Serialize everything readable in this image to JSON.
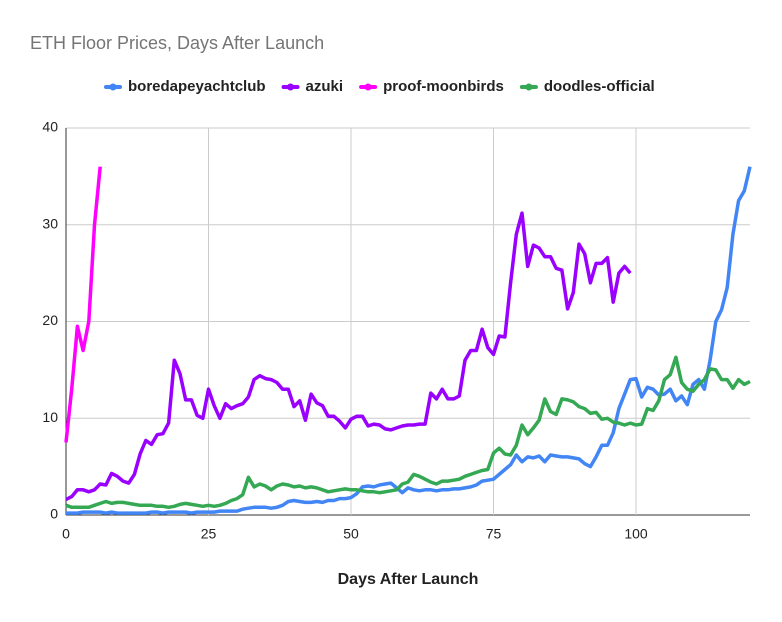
{
  "chart_data": {
    "type": "line",
    "title": "ETH Floor Prices, Days After Launch",
    "x_label": "Days After Launch",
    "xlim": [
      0,
      120
    ],
    "xticks": [
      0,
      25,
      50,
      75,
      100
    ],
    "ylim": [
      0,
      40
    ],
    "yticks": [
      0,
      10,
      20,
      30,
      40
    ],
    "grid": true,
    "legend": "top",
    "x": [
      0,
      1,
      2,
      3,
      4,
      5,
      6,
      7,
      8,
      9,
      10,
      11,
      12,
      13,
      14,
      15,
      16,
      17,
      18,
      19,
      20,
      21,
      22,
      23,
      24,
      25,
      26,
      27,
      28,
      29,
      30,
      31,
      32,
      33,
      34,
      35,
      36,
      37,
      38,
      39,
      40,
      41,
      42,
      43,
      44,
      45,
      46,
      47,
      48,
      49,
      50,
      51,
      52,
      53,
      54,
      55,
      56,
      57,
      58,
      59,
      60,
      61,
      62,
      63,
      64,
      65,
      66,
      67,
      68,
      69,
      70,
      71,
      72,
      73,
      74,
      75,
      76,
      77,
      78,
      79,
      80,
      81,
      82,
      83,
      84,
      85,
      86,
      87,
      88,
      89,
      90,
      91,
      92,
      93,
      94,
      95,
      96,
      97,
      98,
      99,
      100,
      101,
      102,
      103,
      104,
      105,
      106,
      107,
      108,
      109,
      110,
      111,
      112,
      113,
      114,
      115,
      116,
      117,
      118,
      119,
      120
    ],
    "series": [
      {
        "name": "boredapeyachtclub",
        "color": "#4285f4",
        "values": [
          0.2,
          0.2,
          0.2,
          0.3,
          0.3,
          0.3,
          0.3,
          0.2,
          0.3,
          0.2,
          0.2,
          0.2,
          0.2,
          0.2,
          0.2,
          0.3,
          0.3,
          0.2,
          0.3,
          0.3,
          0.3,
          0.3,
          0.2,
          0.3,
          0.3,
          0.3,
          0.3,
          0.4,
          0.4,
          0.4,
          0.4,
          0.6,
          0.7,
          0.8,
          0.8,
          0.8,
          0.7,
          0.8,
          1,
          1.4,
          1.5,
          1.4,
          1.3,
          1.3,
          1.4,
          1.3,
          1.5,
          1.5,
          1.7,
          1.7,
          1.8,
          2.2,
          2.9,
          3,
          2.9,
          3.1,
          3.2,
          3.3,
          2.8,
          2.3,
          2.8,
          2.6,
          2.5,
          2.6,
          2.6,
          2.5,
          2.6,
          2.6,
          2.7,
          2.7,
          2.8,
          2.9,
          3.1,
          3.5,
          3.6,
          3.7,
          4.2,
          4.7,
          5.2,
          6.2,
          5.5,
          6,
          5.9,
          6.1,
          5.5,
          6.2,
          6.1,
          6,
          6,
          5.9,
          5.8,
          5.3,
          5,
          6,
          7.2,
          7.2,
          8.5,
          11,
          12.5,
          14,
          14.1,
          12.2,
          13.2,
          13,
          12.4,
          12.5,
          13,
          11.8,
          12.3,
          11.4,
          13.5,
          14,
          13,
          16,
          20,
          21.2,
          23.5,
          29,
          32.5,
          33.5,
          36
        ]
      },
      {
        "name": "azuki",
        "color": "#9900ff",
        "values": [
          1.6,
          1.9,
          2.6,
          2.6,
          2.4,
          2.6,
          3.2,
          3.1,
          4.3,
          4,
          3.5,
          3.3,
          4.2,
          6.3,
          7.7,
          7.3,
          8.3,
          8.4,
          9.5,
          16,
          14.6,
          11.9,
          11.9,
          10.3,
          10,
          13,
          11.3,
          10,
          11.5,
          11,
          11.3,
          11.5,
          12.2,
          14,
          14.4,
          14.1,
          14,
          13.7,
          13,
          13,
          11.2,
          11.8,
          9.8,
          12.5,
          11.6,
          11.3,
          10.2,
          10.2,
          9.7,
          9,
          9.9,
          10.2,
          10.2,
          9.2,
          9.4,
          9.3,
          8.9,
          8.8,
          9,
          9.2,
          9.3,
          9.3,
          9.4,
          9.4,
          12.6,
          12,
          13,
          12,
          12,
          12.3,
          16,
          17,
          17,
          19.2,
          17.3,
          16.6,
          18.5,
          18.4,
          24,
          29,
          31.2,
          25.7,
          27.9,
          27.6,
          26.7,
          26.7,
          25.5,
          25.3,
          21.3,
          23,
          28,
          27,
          24,
          26,
          26,
          26.6,
          22,
          25,
          25.7,
          25,
          null,
          null,
          null,
          null,
          null,
          null,
          null,
          null,
          null,
          null,
          null,
          null,
          null,
          null,
          null,
          null,
          null,
          null,
          null,
          null,
          null
        ]
      },
      {
        "name": "proof-moonbirds",
        "color": "#ff00ff",
        "values": [
          7.5,
          13,
          19.5,
          17,
          20,
          30,
          36,
          null,
          null,
          null,
          null,
          null,
          null,
          null,
          null,
          null,
          null,
          null,
          null,
          null,
          null,
          null,
          null,
          null,
          null,
          null,
          null,
          null,
          null,
          null,
          null,
          null,
          null,
          null,
          null,
          null,
          null,
          null,
          null,
          null,
          null,
          null,
          null,
          null,
          null,
          null,
          null,
          null,
          null,
          null,
          null,
          null,
          null,
          null,
          null,
          null,
          null,
          null,
          null,
          null,
          null,
          null,
          null,
          null,
          null,
          null,
          null,
          null,
          null,
          null,
          null,
          null,
          null,
          null,
          null,
          null,
          null,
          null,
          null,
          null,
          null,
          null,
          null,
          null,
          null,
          null,
          null,
          null,
          null,
          null,
          null,
          null,
          null,
          null,
          null,
          null,
          null,
          null,
          null,
          null,
          null,
          null,
          null,
          null,
          null,
          null,
          null,
          null,
          null,
          null,
          null,
          null,
          null,
          null,
          null,
          null,
          null,
          null,
          null,
          null,
          null
        ]
      },
      {
        "name": "doodles-official",
        "color": "#34a853",
        "values": [
          1,
          0.8,
          0.8,
          0.8,
          0.8,
          1,
          1.2,
          1.4,
          1.2,
          1.3,
          1.3,
          1.2,
          1.1,
          1,
          1,
          1,
          0.9,
          0.9,
          0.8,
          0.9,
          1.1,
          1.2,
          1.1,
          1,
          0.9,
          1,
          0.9,
          1,
          1.2,
          1.5,
          1.7,
          2.1,
          3.9,
          2.9,
          3.2,
          3,
          2.6,
          3,
          3.2,
          3.1,
          2.9,
          3,
          2.8,
          2.9,
          2.8,
          2.6,
          2.4,
          2.5,
          2.6,
          2.7,
          2.6,
          2.6,
          2.5,
          2.4,
          2.4,
          2.3,
          2.4,
          2.5,
          2.6,
          3.2,
          3.4,
          4.2,
          4,
          3.7,
          3.4,
          3.2,
          3.5,
          3.5,
          3.6,
          3.7,
          4,
          4.2,
          4.4,
          4.6,
          4.7,
          6.4,
          6.9,
          6.3,
          6.2,
          7.2,
          9.3,
          8.3,
          9,
          9.8,
          12,
          10.7,
          10.4,
          12,
          11.9,
          11.7,
          11.2,
          11,
          10.5,
          10.6,
          9.9,
          10,
          9.6,
          9.5,
          9.3,
          9.5,
          9.3,
          9.4,
          11,
          10.8,
          11.8,
          14,
          14.5,
          16.3,
          13.7,
          13,
          12.8,
          13.5,
          14,
          15.1,
          15,
          14,
          14,
          13.1,
          14,
          13.5,
          13.8
        ]
      }
    ]
  }
}
